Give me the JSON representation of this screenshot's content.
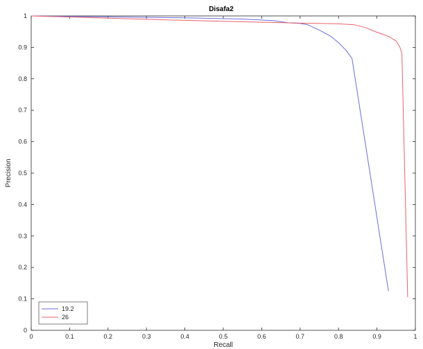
{
  "chart_data": {
    "type": "line",
    "title": "Disafa2",
    "xlabel": "Recall",
    "ylabel": "Precision",
    "xlim": [
      0,
      1
    ],
    "ylim": [
      0,
      1
    ],
    "xticks": [
      "0",
      "0.1",
      "0.2",
      "0.3",
      "0.4",
      "0.5",
      "0.6",
      "0.7",
      "0.8",
      "0.9",
      "1"
    ],
    "yticks": [
      "0",
      "0.1",
      "0.2",
      "0.3",
      "0.4",
      "0.5",
      "0.6",
      "0.7",
      "0.8",
      "0.9",
      "1"
    ],
    "grid": false,
    "legend_position": "bottom-left",
    "series": [
      {
        "name": "19.2",
        "color": "#6b6bdc",
        "points": [
          [
            0,
            1.0
          ],
          [
            0.2,
            0.997
          ],
          [
            0.4,
            0.994
          ],
          [
            0.55,
            0.99
          ],
          [
            0.63,
            0.985
          ],
          [
            0.67,
            0.978
          ],
          [
            0.7,
            0.976
          ],
          [
            0.72,
            0.972
          ],
          [
            0.75,
            0.955
          ],
          [
            0.78,
            0.935
          ],
          [
            0.8,
            0.915
          ],
          [
            0.82,
            0.89
          ],
          [
            0.835,
            0.865
          ],
          [
            0.93,
            0.125
          ]
        ]
      },
      {
        "name": "26",
        "color": "#e8616b",
        "points": [
          [
            0,
            1.0
          ],
          [
            0.2,
            0.993
          ],
          [
            0.4,
            0.986
          ],
          [
            0.6,
            0.98
          ],
          [
            0.7,
            0.977
          ],
          [
            0.8,
            0.975
          ],
          [
            0.84,
            0.972
          ],
          [
            0.87,
            0.963
          ],
          [
            0.9,
            0.948
          ],
          [
            0.93,
            0.935
          ],
          [
            0.95,
            0.92
          ],
          [
            0.96,
            0.9
          ],
          [
            0.965,
            0.88
          ],
          [
            0.98,
            0.105
          ]
        ]
      }
    ]
  }
}
